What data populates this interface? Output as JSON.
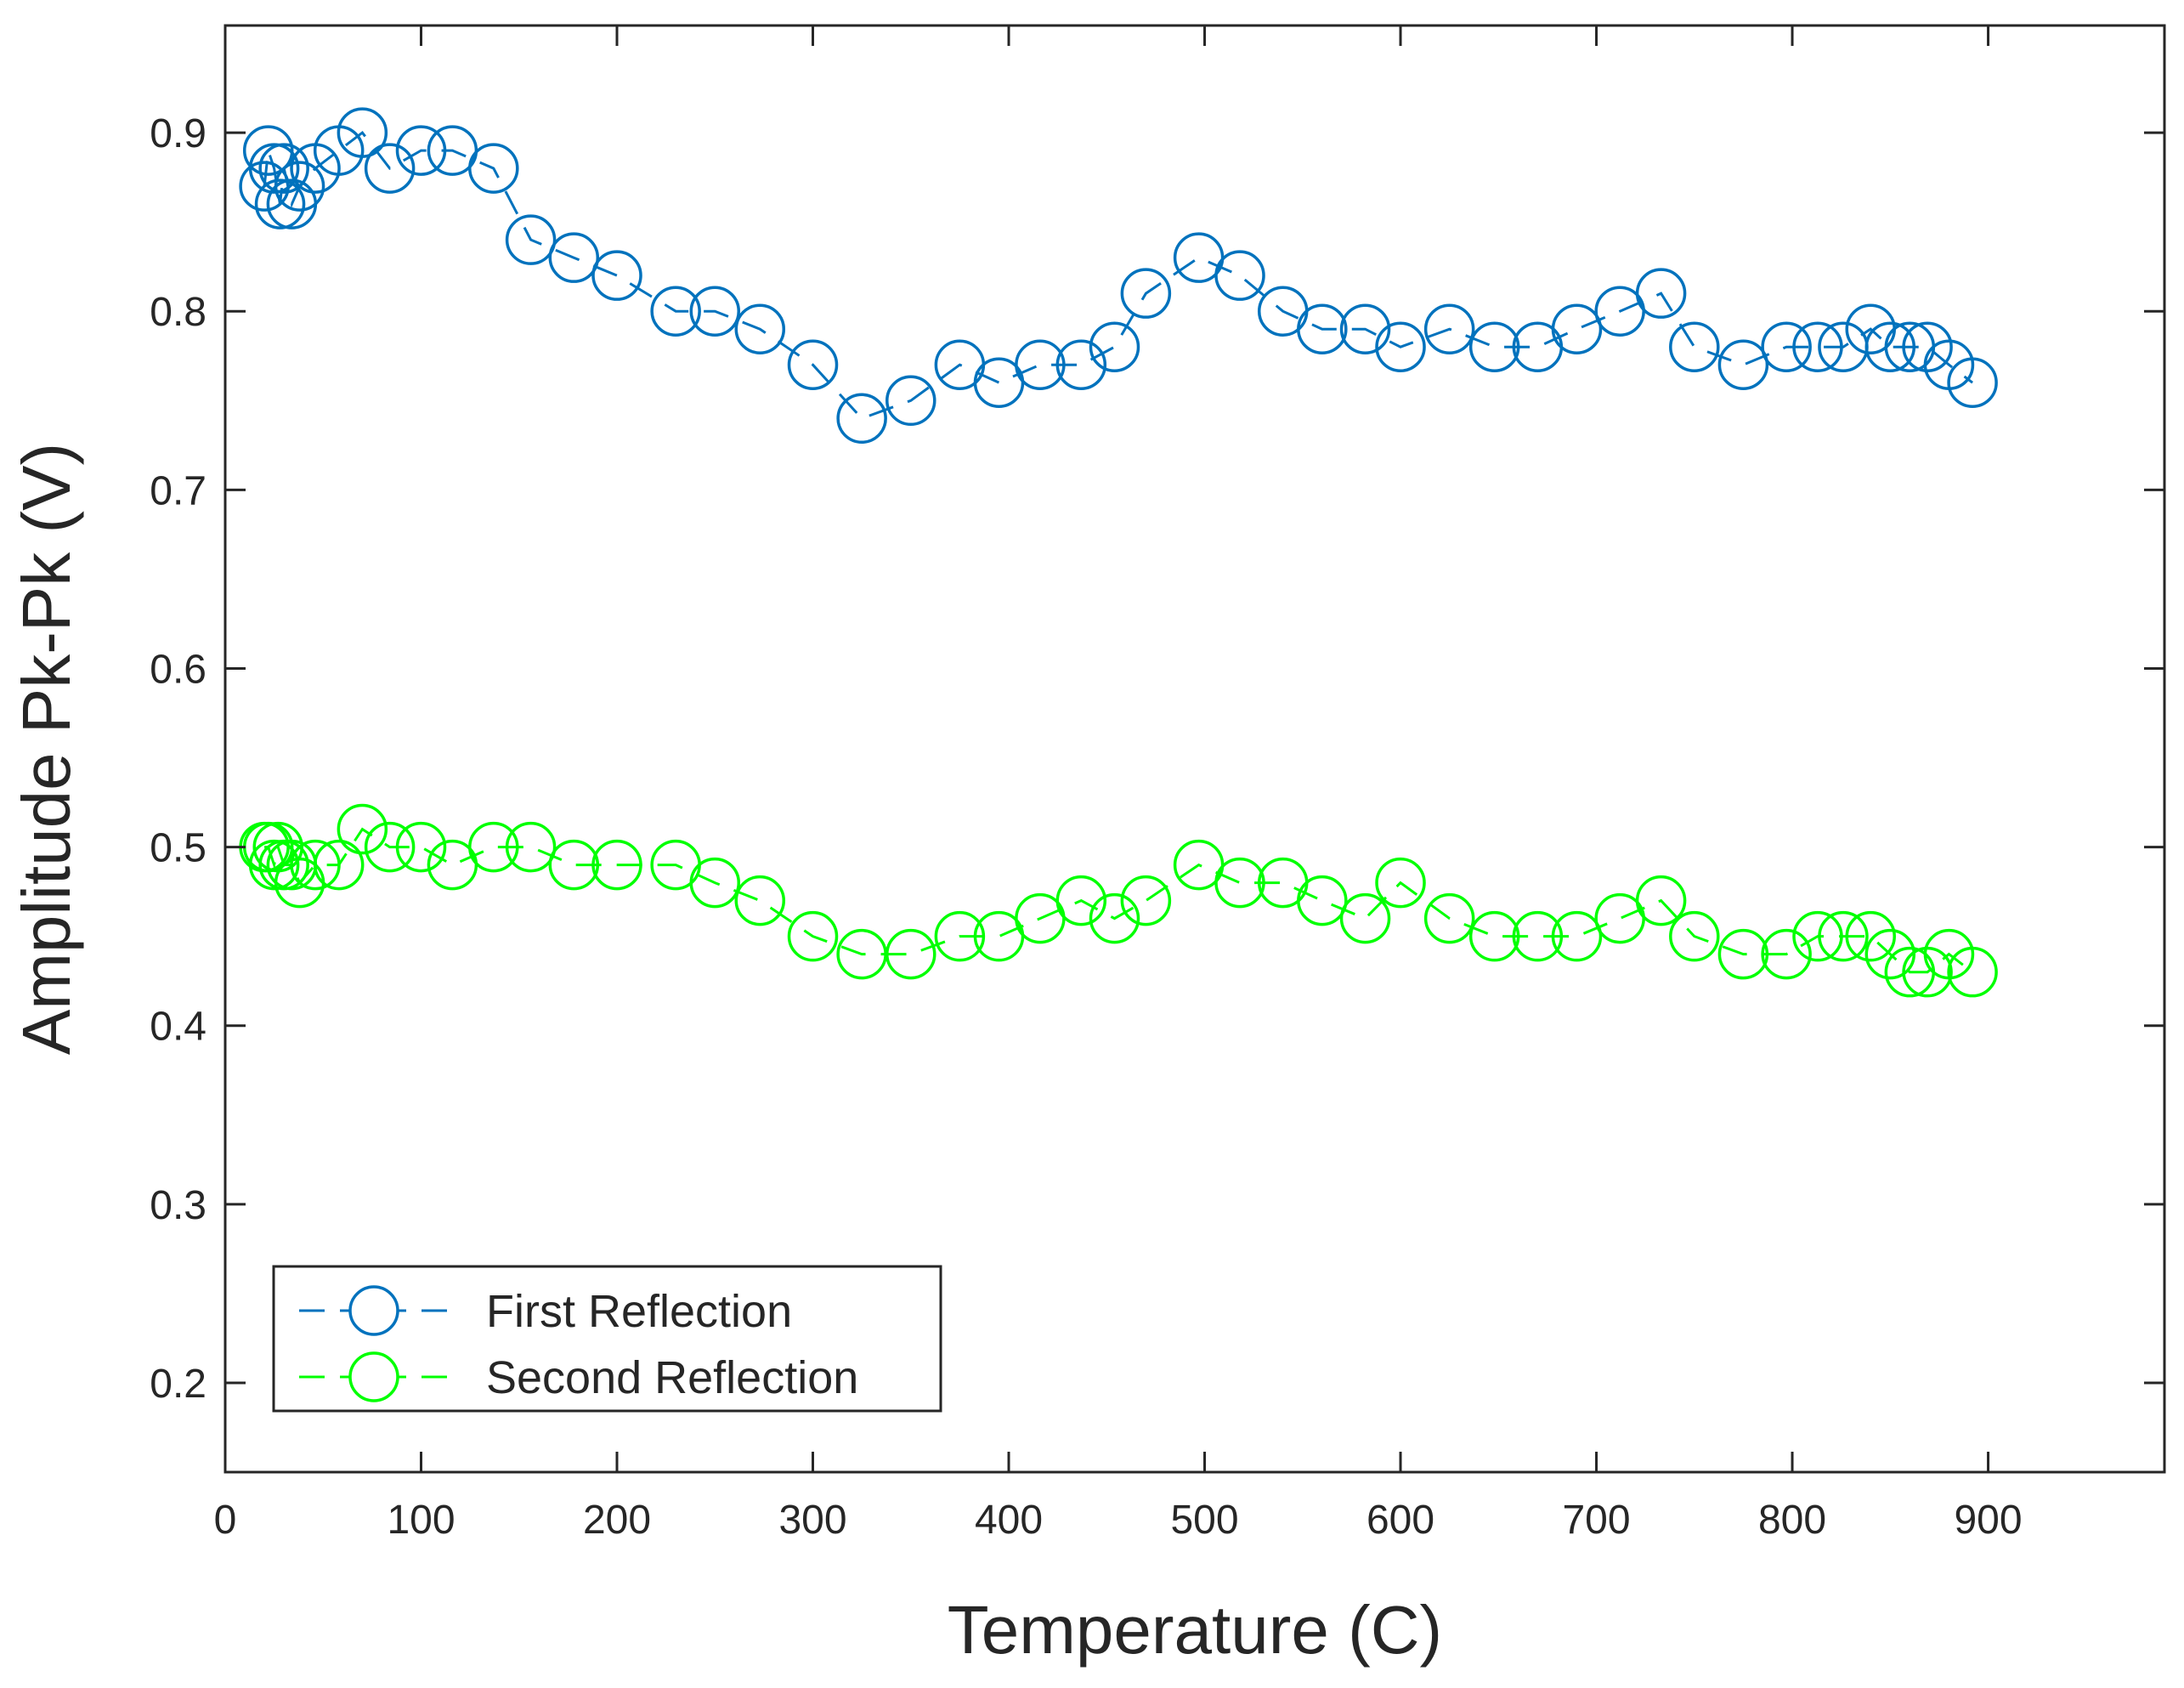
{
  "chart_data": {
    "type": "line",
    "title": "",
    "xlabel": "Temperature (C)",
    "ylabel": "Amplitude Pk-Pk (V)",
    "xlim": [
      0,
      990
    ],
    "ylim": [
      0.15,
      0.96
    ],
    "xticks": [
      0,
      100,
      200,
      300,
      400,
      500,
      600,
      700,
      800,
      900
    ],
    "yticks": [
      0.2,
      0.3,
      0.4,
      0.5,
      0.6,
      0.7,
      0.8,
      0.9
    ],
    "xtick_labels": [
      "0",
      "100",
      "200",
      "300",
      "400",
      "500",
      "600",
      "700",
      "800",
      "900"
    ],
    "ytick_labels": [
      "0.2",
      "0.3",
      "0.4",
      "0.5",
      "0.6",
      "0.7",
      "0.8",
      "0.9"
    ],
    "grid": false,
    "legend_position": "bottom-left",
    "series": [
      {
        "name": "First Reflection",
        "color": "#0072BD",
        "line_style": "dashed",
        "marker": "circle",
        "x": [
          20,
          22,
          25,
          28,
          30,
          34,
          38,
          46,
          58,
          70,
          84,
          100,
          116,
          137,
          156,
          178,
          200,
          230,
          250,
          273,
          300,
          325,
          350,
          375,
          395,
          416,
          437,
          454,
          470,
          497,
          518,
          540,
          560,
          582,
          600,
          625,
          648,
          670,
          690,
          712,
          733,
          750,
          775,
          797,
          813,
          826,
          840,
          850,
          860,
          869,
          880,
          892
        ],
        "y": [
          0.87,
          0.89,
          0.88,
          0.86,
          0.88,
          0.86,
          0.87,
          0.88,
          0.89,
          0.9,
          0.88,
          0.89,
          0.89,
          0.88,
          0.84,
          0.83,
          0.82,
          0.8,
          0.8,
          0.79,
          0.77,
          0.74,
          0.75,
          0.77,
          0.76,
          0.77,
          0.77,
          0.78,
          0.81,
          0.83,
          0.82,
          0.8,
          0.79,
          0.79,
          0.78,
          0.79,
          0.78,
          0.78,
          0.79,
          0.8,
          0.81,
          0.78,
          0.77,
          0.78,
          0.78,
          0.78,
          0.79,
          0.78,
          0.78,
          0.78,
          0.77,
          0.76
        ]
      },
      {
        "name": "Second Reflection",
        "color": "#00FF00",
        "line_style": "dashed",
        "marker": "circle",
        "x": [
          20,
          22,
          25,
          27,
          30,
          34,
          38,
          46,
          58,
          70,
          84,
          100,
          116,
          137,
          156,
          178,
          200,
          230,
          250,
          273,
          300,
          325,
          350,
          375,
          395,
          416,
          437,
          454,
          470,
          497,
          518,
          540,
          560,
          582,
          600,
          625,
          648,
          670,
          690,
          712,
          733,
          750,
          775,
          797,
          813,
          826,
          840,
          850,
          860,
          869,
          880,
          892
        ],
        "y": [
          0.5,
          0.5,
          0.49,
          0.5,
          0.49,
          0.49,
          0.48,
          0.49,
          0.49,
          0.51,
          0.5,
          0.5,
          0.49,
          0.5,
          0.5,
          0.49,
          0.49,
          0.49,
          0.48,
          0.47,
          0.45,
          0.44,
          0.44,
          0.45,
          0.45,
          0.46,
          0.47,
          0.46,
          0.47,
          0.49,
          0.48,
          0.48,
          0.47,
          0.46,
          0.48,
          0.46,
          0.45,
          0.45,
          0.45,
          0.46,
          0.47,
          0.45,
          0.44,
          0.44,
          0.45,
          0.45,
          0.45,
          0.44,
          0.43,
          0.43,
          0.44,
          0.43
        ]
      }
    ]
  }
}
